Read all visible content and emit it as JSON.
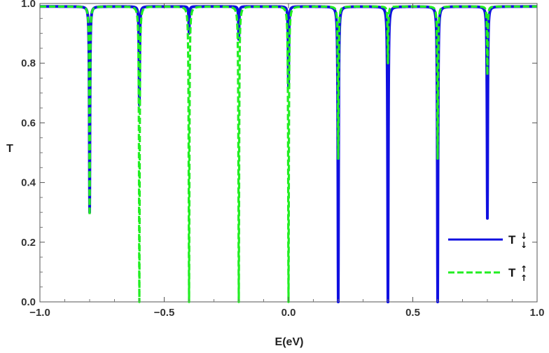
{
  "chart_data": {
    "type": "line",
    "title": "",
    "xlabel": "E(eV)",
    "ylabel": "T",
    "xlim": [
      -1.0,
      1.0
    ],
    "ylim": [
      0.0,
      1.0
    ],
    "x_ticks": [
      "−1.0",
      "−0.5",
      "0.0",
      "0.5",
      "1.0"
    ],
    "y_ticks": [
      "0.0",
      "0.2",
      "0.4",
      "0.6",
      "0.8",
      "1.0"
    ],
    "x_tick_values": [
      -1.0,
      -0.5,
      0.0,
      0.5,
      1.0
    ],
    "y_tick_values": [
      0.0,
      0.2,
      0.4,
      0.6,
      0.8,
      1.0
    ],
    "grid": false,
    "legend_position": "bottom-right",
    "baseline": 0.99,
    "series": [
      {
        "name": "T",
        "name_arrow": "↓",
        "name_sub_arrow": "↓",
        "color": "#1010e0",
        "style": "solid",
        "dips": [
          {
            "x": -0.8,
            "min": 0.3
          },
          {
            "x": -0.6,
            "min": 0.66
          },
          {
            "x": -0.4,
            "min": 0.9
          },
          {
            "x": -0.2,
            "min": 0.88
          },
          {
            "x": 0.0,
            "min": 0.72
          },
          {
            "x": 0.2,
            "min": 0.0
          },
          {
            "x": 0.4,
            "min": 0.0
          },
          {
            "x": 0.6,
            "min": 0.0
          },
          {
            "x": 0.8,
            "min": 0.28
          }
        ]
      },
      {
        "name": "T",
        "name_arrow": "↑",
        "name_sub_arrow": "↑",
        "color": "#22ee22",
        "style": "dashed",
        "dips": [
          {
            "x": -0.8,
            "min": 0.29
          },
          {
            "x": -0.6,
            "min": 0.0
          },
          {
            "x": -0.4,
            "min": 0.0
          },
          {
            "x": -0.2,
            "min": 0.0
          },
          {
            "x": 0.0,
            "min": 0.0
          },
          {
            "x": 0.2,
            "min": 0.48
          },
          {
            "x": 0.4,
            "min": 0.8
          },
          {
            "x": 0.6,
            "min": 0.48
          },
          {
            "x": 0.8,
            "min": 0.76
          }
        ]
      }
    ]
  }
}
